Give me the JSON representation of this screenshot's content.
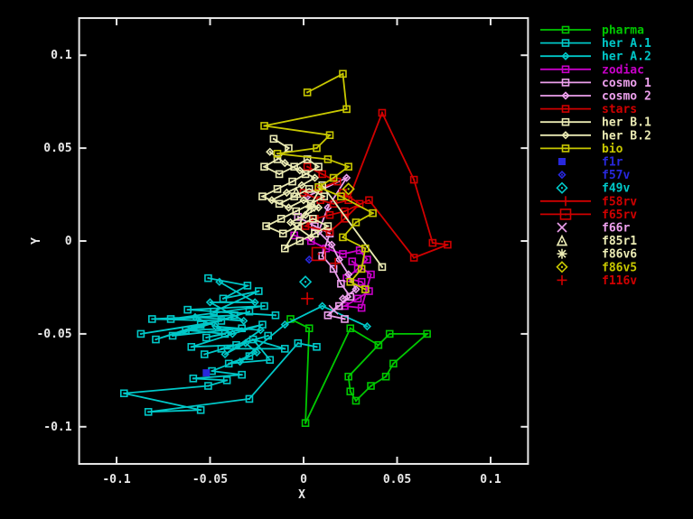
{
  "chart_data": {
    "type": "scatter",
    "title": "",
    "xlabel": "X",
    "ylabel": "Y",
    "xlim": [
      -0.12,
      0.12
    ],
    "ylim": [
      -0.12,
      0.12
    ],
    "xticks": {
      "values": [
        -0.1,
        -0.05,
        0,
        0.05,
        0.1
      ],
      "labels": [
        "-0.1",
        "-0.05",
        "0",
        "0.05",
        "0.1"
      ]
    },
    "yticks": {
      "values": [
        -0.1,
        -0.05,
        0,
        0.05,
        0.1
      ],
      "labels": [
        "-0.1",
        "-0.05",
        "0",
        "0.05",
        "0.1"
      ]
    },
    "grid": false,
    "background_color": "#000000",
    "axis_color": "#e8e8e8",
    "legend_position": "right-outside",
    "series": [
      {
        "name": "pharma",
        "color": "#00c800",
        "marker": "square",
        "ms": 3.5,
        "line": true,
        "points": [
          [
            -0.007,
            -0.042
          ],
          [
            0.003,
            -0.047
          ],
          [
            0.001,
            -0.098
          ],
          [
            0.025,
            -0.047
          ],
          [
            0.04,
            -0.056
          ],
          [
            0.046,
            -0.05
          ],
          [
            0.066,
            -0.05
          ],
          [
            0.048,
            -0.066
          ],
          [
            0.044,
            -0.073
          ],
          [
            0.036,
            -0.078
          ],
          [
            0.028,
            -0.086
          ],
          [
            0.025,
            -0.081
          ],
          [
            0.024,
            -0.073
          ],
          [
            0.04,
            -0.056
          ]
        ]
      },
      {
        "name": "her A.1",
        "color": "#00c8c8",
        "marker": "square",
        "ms": 3.5,
        "line": true,
        "points": [
          [
            -0.051,
            -0.02
          ],
          [
            -0.03,
            -0.024
          ],
          [
            -0.043,
            -0.031
          ],
          [
            -0.024,
            -0.027
          ],
          [
            -0.048,
            -0.038
          ],
          [
            -0.015,
            -0.04
          ],
          [
            -0.062,
            -0.037
          ],
          [
            -0.021,
            -0.035
          ],
          [
            -0.071,
            -0.042
          ],
          [
            -0.037,
            -0.04
          ],
          [
            -0.081,
            -0.042
          ],
          [
            -0.044,
            -0.043
          ],
          [
            -0.087,
            -0.05
          ],
          [
            -0.055,
            -0.045
          ],
          [
            -0.079,
            -0.053
          ],
          [
            -0.029,
            -0.038
          ],
          [
            -0.07,
            -0.051
          ],
          [
            -0.033,
            -0.047
          ],
          [
            -0.063,
            -0.048
          ],
          [
            -0.042,
            -0.05
          ],
          [
            -0.052,
            -0.052
          ],
          [
            -0.022,
            -0.045
          ],
          [
            -0.06,
            -0.057
          ],
          [
            -0.036,
            -0.056
          ],
          [
            -0.053,
            -0.061
          ],
          [
            -0.019,
            -0.051
          ],
          [
            -0.044,
            -0.058
          ],
          [
            -0.01,
            -0.058
          ],
          [
            -0.027,
            -0.053
          ],
          [
            -0.018,
            -0.064
          ],
          [
            -0.04,
            -0.066
          ],
          [
            -0.029,
            -0.062
          ],
          [
            -0.049,
            -0.07
          ],
          [
            -0.033,
            -0.072
          ],
          [
            -0.059,
            -0.074
          ],
          [
            -0.041,
            -0.075
          ],
          [
            -0.051,
            -0.078
          ],
          [
            -0.096,
            -0.082
          ],
          [
            -0.055,
            -0.091
          ],
          [
            -0.083,
            -0.092
          ],
          [
            -0.029,
            -0.085
          ],
          [
            -0.003,
            -0.055
          ],
          [
            0.007,
            -0.057
          ]
        ]
      },
      {
        "name": "her A.2",
        "color": "#00c8c8",
        "marker": "diamond",
        "ms": 3.5,
        "line": true,
        "points": [
          [
            -0.045,
            -0.022
          ],
          [
            -0.026,
            -0.033
          ],
          [
            -0.05,
            -0.033
          ],
          [
            -0.032,
            -0.043
          ],
          [
            -0.058,
            -0.041
          ],
          [
            -0.038,
            -0.05
          ],
          [
            -0.047,
            -0.046
          ],
          [
            -0.023,
            -0.048
          ],
          [
            -0.042,
            -0.061
          ],
          [
            -0.031,
            -0.055
          ],
          [
            -0.025,
            -0.06
          ],
          [
            -0.034,
            -0.065
          ],
          [
            -0.01,
            -0.045
          ],
          [
            0.01,
            -0.035
          ],
          [
            0.034,
            -0.046
          ]
        ]
      },
      {
        "name": "zodiac",
        "color": "#c800c8",
        "marker": "square",
        "ms": 3.5,
        "line": true,
        "points": [
          [
            -0.005,
            0.003
          ],
          [
            0.004,
            0.0
          ],
          [
            0.012,
            -0.004
          ],
          [
            0.021,
            -0.007
          ],
          [
            0.03,
            -0.005
          ],
          [
            0.034,
            -0.01
          ],
          [
            0.029,
            -0.015
          ],
          [
            0.023,
            -0.02
          ],
          [
            0.031,
            -0.022
          ],
          [
            0.035,
            -0.027
          ],
          [
            0.029,
            -0.031
          ],
          [
            0.022,
            -0.035
          ],
          [
            0.031,
            -0.036
          ],
          [
            0.036,
            -0.018
          ],
          [
            0.026,
            -0.011
          ]
        ]
      },
      {
        "name": "cosmo 1",
        "color": "#eda0ed",
        "marker": "square",
        "ms": 3.5,
        "line": true,
        "points": [
          [
            -0.003,
            0.013
          ],
          [
            0.006,
            0.008
          ],
          [
            0.014,
            0.004
          ],
          [
            0.01,
            -0.008
          ],
          [
            0.016,
            -0.015
          ],
          [
            0.02,
            -0.023
          ],
          [
            0.025,
            -0.03
          ],
          [
            0.019,
            -0.035
          ],
          [
            0.013,
            -0.04
          ],
          [
            0.022,
            -0.042
          ]
        ]
      },
      {
        "name": "cosmo 2",
        "color": "#eda0ed",
        "marker": "diamond",
        "ms": 3.5,
        "line": true,
        "points": [
          [
            0.002,
            0.024
          ],
          [
            0.023,
            0.034
          ],
          [
            0.013,
            0.018
          ],
          [
            0.008,
            0.005
          ],
          [
            0.015,
            -0.002
          ],
          [
            0.019,
            -0.01
          ],
          [
            0.024,
            -0.018
          ],
          [
            0.028,
            -0.026
          ],
          [
            0.021,
            -0.031
          ]
        ]
      },
      {
        "name": "stars",
        "color": "#d00000",
        "marker": "square",
        "ms": 3.5,
        "line": true,
        "points": [
          [
            0.002,
            0.04
          ],
          [
            0.01,
            0.036
          ],
          [
            0.018,
            0.032
          ],
          [
            0.008,
            0.028
          ],
          [
            0.0,
            0.026
          ],
          [
            0.009,
            0.022
          ],
          [
            0.016,
            0.02
          ],
          [
            0.024,
            0.022
          ],
          [
            0.042,
            0.069
          ],
          [
            0.059,
            0.033
          ],
          [
            0.069,
            -0.001
          ],
          [
            0.077,
            -0.002
          ],
          [
            0.059,
            -0.009
          ],
          [
            0.035,
            0.022
          ],
          [
            0.022,
            0.016
          ],
          [
            0.014,
            0.014
          ],
          [
            0.006,
            0.012
          ],
          [
            0.001,
            0.008
          ],
          [
            0.014,
            0.005
          ],
          [
            0.022,
            0.012
          ],
          [
            0.03,
            0.02
          ],
          [
            0.021,
            0.026
          ]
        ]
      },
      {
        "name": "her B.1",
        "color": "#ebebb4",
        "marker": "square",
        "ms": 3.5,
        "line": true,
        "points": [
          [
            -0.016,
            0.055
          ],
          [
            -0.008,
            0.05
          ],
          [
            -0.014,
            0.044
          ],
          [
            -0.021,
            0.04
          ],
          [
            -0.013,
            0.036
          ],
          [
            -0.005,
            0.04
          ],
          [
            0.002,
            0.044
          ],
          [
            0.008,
            0.04
          ],
          [
            0.001,
            0.036
          ],
          [
            -0.006,
            0.032
          ],
          [
            -0.014,
            0.028
          ],
          [
            -0.022,
            0.024
          ],
          [
            -0.013,
            0.02
          ],
          [
            -0.005,
            0.024
          ],
          [
            0.003,
            0.028
          ],
          [
            0.011,
            0.024
          ],
          [
            0.004,
            0.02
          ],
          [
            -0.004,
            0.016
          ],
          [
            -0.012,
            0.012
          ],
          [
            -0.02,
            0.008
          ],
          [
            -0.011,
            0.004
          ],
          [
            -0.003,
            0.008
          ],
          [
            0.005,
            0.012
          ],
          [
            0.013,
            0.008
          ],
          [
            0.006,
            0.004
          ],
          [
            -0.002,
            0.0
          ],
          [
            -0.01,
            -0.004
          ],
          [
            0.01,
            0.03
          ],
          [
            0.042,
            -0.014
          ]
        ]
      },
      {
        "name": "her B.2",
        "color": "#ebebb4",
        "marker": "diamond",
        "ms": 3.5,
        "line": true,
        "points": [
          [
            -0.018,
            0.048
          ],
          [
            -0.01,
            0.042
          ],
          [
            -0.002,
            0.038
          ],
          [
            0.006,
            0.034
          ],
          [
            -0.001,
            0.03
          ],
          [
            -0.009,
            0.026
          ],
          [
            -0.017,
            0.022
          ],
          [
            -0.008,
            0.018
          ],
          [
            0.0,
            0.022
          ],
          [
            0.008,
            0.018
          ],
          [
            0.001,
            0.014
          ],
          [
            -0.007,
            0.01
          ],
          [
            0.004,
            0.002
          ]
        ]
      },
      {
        "name": "bio",
        "color": "#c8c800",
        "marker": "square",
        "ms": 3.5,
        "line": true,
        "points": [
          [
            0.002,
            0.08
          ],
          [
            0.021,
            0.09
          ],
          [
            0.023,
            0.071
          ],
          [
            -0.021,
            0.062
          ],
          [
            0.014,
            0.057
          ],
          [
            0.007,
            0.05
          ],
          [
            -0.014,
            0.047
          ],
          [
            0.013,
            0.044
          ],
          [
            0.024,
            0.04
          ],
          [
            0.016,
            0.034
          ],
          [
            0.008,
            0.029
          ],
          [
            0.02,
            0.024
          ],
          [
            0.037,
            0.015
          ],
          [
            0.028,
            0.01
          ],
          [
            0.021,
            0.002
          ],
          [
            0.033,
            -0.004
          ],
          [
            0.031,
            -0.015
          ],
          [
            0.025,
            -0.022
          ],
          [
            0.033,
            -0.026
          ]
        ]
      },
      {
        "name": "f1r",
        "color": "#2828dd",
        "marker": "fsquare",
        "ms": 4,
        "line": false,
        "points": [
          [
            -0.052,
            -0.071
          ]
        ]
      },
      {
        "name": "f57v",
        "color": "#2828dd",
        "marker": "diamond",
        "ms": 3.5,
        "line": false,
        "points": [
          [
            0.003,
            -0.01
          ]
        ]
      },
      {
        "name": "f49v",
        "color": "#00c8c8",
        "marker": "diamond",
        "ms": 6,
        "line": false,
        "points": [
          [
            0.001,
            -0.022
          ]
        ]
      },
      {
        "name": "f58rv",
        "color": "#d00000",
        "marker": "plus",
        "ms": 6,
        "line": true,
        "points": [
          [
            0.017,
            -0.012
          ]
        ]
      },
      {
        "name": "f65rv",
        "color": "#d00000",
        "marker": "square",
        "ms": 7,
        "line": true,
        "points": [
          [
            0.008,
            -0.007
          ]
        ]
      },
      {
        "name": "f66r",
        "color": "#eda0ed",
        "marker": "cross",
        "ms": 5,
        "line": false,
        "points": [
          [
            0.016,
            -0.037
          ]
        ]
      },
      {
        "name": "f85r1",
        "color": "#ebebb4",
        "marker": "triangle",
        "ms": 5,
        "line": false,
        "points": [
          [
            -0.004,
            0.026
          ]
        ]
      },
      {
        "name": "f86v6",
        "color": "#ebebb4",
        "marker": "asterisk",
        "ms": 6,
        "line": false,
        "points": [
          [
            0.004,
            0.018
          ]
        ]
      },
      {
        "name": "f86v5",
        "color": "#c8c800",
        "marker": "diamond",
        "ms": 6,
        "line": false,
        "points": [
          [
            0.024,
            0.028
          ]
        ]
      },
      {
        "name": "f116v",
        "color": "#d00000",
        "marker": "plus",
        "ms": 7,
        "line": false,
        "points": [
          [
            0.002,
            -0.031
          ]
        ]
      }
    ]
  }
}
